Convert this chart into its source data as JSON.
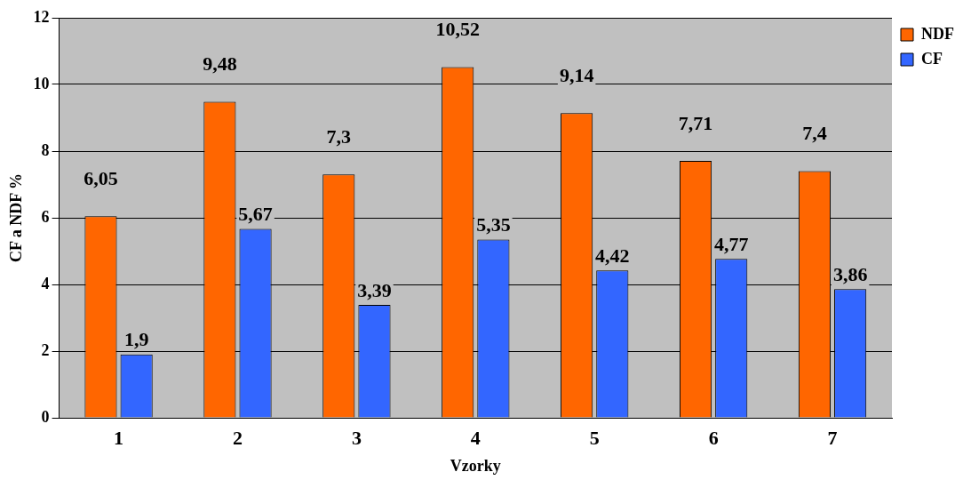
{
  "chart_data": {
    "type": "bar",
    "xlabel": "Vzorky",
    "ylabel": "CF a NDF %",
    "categories": [
      "1",
      "2",
      "3",
      "4",
      "5",
      "6",
      "7"
    ],
    "series": [
      {
        "name": "NDF",
        "color": "#ff6600",
        "values": [
          6.05,
          9.48,
          7.3,
          10.52,
          9.14,
          7.71,
          7.4
        ],
        "value_labels": [
          "6,05",
          "9,48",
          "7,3",
          "10,52",
          "9,14",
          "7,71",
          "7,4"
        ]
      },
      {
        "name": "CF",
        "color": "#3366ff",
        "values": [
          1.9,
          5.67,
          3.39,
          5.35,
          4.42,
          4.77,
          3.86
        ],
        "value_labels": [
          "1,9",
          "5,67",
          "3,39",
          "5,35",
          "4,42",
          "4,77",
          "3,86"
        ]
      }
    ],
    "ylim": [
      0,
      12
    ],
    "yticks": [
      0,
      2,
      4,
      6,
      8,
      10,
      12
    ],
    "grid": "y",
    "legend": "top right"
  }
}
